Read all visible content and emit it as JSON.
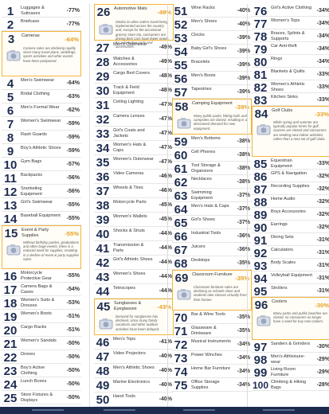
{
  "chart_data": {
    "type": "table",
    "rows": [
      {
        "rank": 1,
        "name": "Luggages & Suitcases",
        "value": "-77%"
      },
      {
        "rank": 2,
        "name": "Briefcase",
        "value": "-77%"
      },
      {
        "rank": 3,
        "name": "Cameras",
        "value": "-64%",
        "note": "Camera sales are declining rapidly since many travel plans, weddings, sports activities and other events have been postponed."
      },
      {
        "rank": 4,
        "name": "Men's Swimwear",
        "value": "-64%"
      },
      {
        "rank": 5,
        "name": "Bridal Clothing",
        "value": "-63%"
      },
      {
        "rank": 6,
        "name": "Men's Formal Wear",
        "value": "-62%"
      },
      {
        "rank": 7,
        "name": "Women's Swimwear",
        "value": "-59%"
      },
      {
        "rank": 8,
        "name": "Rash Guards",
        "value": "-59%"
      },
      {
        "rank": 9,
        "name": "Boy's Athletic Shoes",
        "value": "-59%"
      },
      {
        "rank": 10,
        "name": "Gym Bags",
        "value": "-57%"
      },
      {
        "rank": 11,
        "name": "Backpacks",
        "value": "-56%"
      },
      {
        "rank": 12,
        "name": "Snorkeling Equipment",
        "value": "-56%"
      },
      {
        "rank": 13,
        "name": "Girl's Swimwear",
        "value": "-55%"
      },
      {
        "rank": 14,
        "name": "Baseball Equipment",
        "value": "-55%"
      },
      {
        "rank": 15,
        "name": "Event & Party Supplies",
        "value": "-55%",
        "note": "Without birthday parties, graduations and other large events, there is a reduced need for supplies, resulting in a decline of event & party supplies sales."
      },
      {
        "rank": 16,
        "name": "Motorcycle Protective Gear",
        "value": "-55%"
      },
      {
        "rank": 17,
        "name": "Camera Bags & Cases",
        "value": "-54%"
      },
      {
        "rank": 18,
        "name": "Women's Suits & Dresses",
        "value": "-53%"
      },
      {
        "rank": 19,
        "name": "Women's Boots",
        "value": "-51%"
      },
      {
        "rank": 20,
        "name": "Cargo Racks",
        "value": "-51%"
      },
      {
        "rank": 21,
        "name": "Women's Sandals",
        "value": "-50%"
      },
      {
        "rank": 22,
        "name": "Drones",
        "value": "-50%"
      },
      {
        "rank": 23,
        "name": "Boy's Active Clothing",
        "value": "-50%"
      },
      {
        "rank": 24,
        "name": "Lunch Boxes",
        "value": "-50%"
      },
      {
        "rank": 25,
        "name": "Store Fixtures & Displays",
        "value": "-50%"
      },
      {
        "rank": 26,
        "name": "Automotive Mats",
        "value": "-49%",
        "note": "Similar to other orders travel being implemented across the country and, except for the occasional grocery store trip, consumers are driving their cars have fewer needs for automotive parts and accessories."
      },
      {
        "rank": 27,
        "name": "Men's Outerwear",
        "value": "-49%"
      },
      {
        "rank": 28,
        "name": "Watches & Accessories",
        "value": "-49%"
      },
      {
        "rank": 29,
        "name": "Cargo Bed Covers",
        "value": "-48%"
      },
      {
        "rank": 30,
        "name": "Track & Field Equipment",
        "value": "-48%"
      },
      {
        "rank": 31,
        "name": "Ceiling Lighting",
        "value": "-47%"
      },
      {
        "rank": 32,
        "name": "Camera Lenses",
        "value": "-47%"
      },
      {
        "rank": 33,
        "name": "Girl's Coats and Jackets",
        "value": "-47%"
      },
      {
        "rank": 34,
        "name": "Women's Hats & Caps",
        "value": "-47%"
      },
      {
        "rank": 35,
        "name": "Women's Outerwear",
        "value": "-47%"
      },
      {
        "rank": 36,
        "name": "Video Cameras",
        "value": "-46%"
      },
      {
        "rank": 37,
        "name": "Wheels & Tires",
        "value": "-46%"
      },
      {
        "rank": 38,
        "name": "Motorcycle Parts",
        "value": "-45%"
      },
      {
        "rank": 39,
        "name": "Women's Wallets",
        "value": "-45%"
      },
      {
        "rank": 40,
        "name": "Shocks & Struts",
        "value": "-44%"
      },
      {
        "rank": 41,
        "name": "Transmission & Parts",
        "value": "-44%"
      },
      {
        "rank": 42,
        "name": "Girl's Athletic Shoes",
        "value": "-44%"
      },
      {
        "rank": 43,
        "name": "Women's Shoes",
        "value": "-44%"
      },
      {
        "rank": 44,
        "name": "Telescopes",
        "value": "-44%"
      },
      {
        "rank": 45,
        "name": "Sunglasses & Eyeglasses",
        "value": "-43%",
        "note": "Demand for sunglasses has declined, since many family vacations and other outdoor activities have been delayed."
      },
      {
        "rank": 46,
        "name": "Men's Tops",
        "value": "-41%"
      },
      {
        "rank": 47,
        "name": "Video Projectors",
        "value": "-40%"
      },
      {
        "rank": 48,
        "name": "Men's Athletic Shoes",
        "value": "-40%"
      },
      {
        "rank": 49,
        "name": "Marine Electronics",
        "value": "-40%"
      },
      {
        "rank": 50,
        "name": "Hand Tools",
        "value": "-40%"
      },
      {
        "rank": 51,
        "name": "Wine Racks",
        "value": "-40%"
      },
      {
        "rank": 52,
        "name": "Men's Shoes",
        "value": "-40%"
      },
      {
        "rank": 53,
        "name": "Clocks",
        "value": "-39%"
      },
      {
        "rank": 54,
        "name": "Baby Girl's Shoes",
        "value": "-39%"
      },
      {
        "rank": 55,
        "name": "Bracelets",
        "value": "-39%"
      },
      {
        "rank": 56,
        "name": "Men's Boots",
        "value": "-39%"
      },
      {
        "rank": 57,
        "name": "Tapestries",
        "value": "-39%"
      },
      {
        "rank": 58,
        "name": "Camping Equipment",
        "value": "-39%",
        "note": "Many public parks, hiking trails and campsites are closed, resulting in a decreased demand for new equipment."
      },
      {
        "rank": 59,
        "name": "Men's Bottoms",
        "value": "-38%"
      },
      {
        "rank": 60,
        "name": "Cell Phones",
        "value": "-38%"
      },
      {
        "rank": 61,
        "name": "Tool Storage & Organizers",
        "value": "-38%"
      },
      {
        "rank": 62,
        "name": "Necklaces",
        "value": "-38%"
      },
      {
        "rank": 63,
        "name": "Swimming Equipment",
        "value": "-37%"
      },
      {
        "rank": 64,
        "name": "Men's Hats & Caps",
        "value": "-37%"
      },
      {
        "rank": 65,
        "name": "Girl's Shoes",
        "value": "-37%"
      },
      {
        "rank": 66,
        "name": "Industrial Tools",
        "value": "-36%"
      },
      {
        "rank": 67,
        "name": "Juicers",
        "value": "-36%"
      },
      {
        "rank": 68,
        "name": "Desktops",
        "value": "-35%"
      },
      {
        "rank": 69,
        "name": "Classroom Furniture",
        "value": "-35%",
        "note": "Classroom furniture sales are declining as schools close and students take classes virtually from their homes."
      },
      {
        "rank": 70,
        "name": "Bar & Wine Tools",
        "value": "-35%"
      },
      {
        "rank": 71,
        "name": "Glassware & Drinkware",
        "value": "-35%"
      },
      {
        "rank": 72,
        "name": "Musical Instruments",
        "value": "-34%"
      },
      {
        "rank": 73,
        "name": "Power Winches",
        "value": "-34%"
      },
      {
        "rank": 74,
        "name": "Home Bar Furniture",
        "value": "-34%"
      },
      {
        "rank": 75,
        "name": "Office Storage Supplies",
        "value": "-34%"
      },
      {
        "rank": 76,
        "name": "Girl's Active Clothing",
        "value": "-34%"
      },
      {
        "rank": 77,
        "name": "Women's Tops",
        "value": "-34%"
      },
      {
        "rank": 78,
        "name": "Braces, Splints & Supports",
        "value": "-34%"
      },
      {
        "rank": 79,
        "name": "Car Anti-theft",
        "value": "-34%"
      },
      {
        "rank": 80,
        "name": "Rings",
        "value": "-34%"
      },
      {
        "rank": 81,
        "name": "Blankets & Quilts",
        "value": "-33%"
      },
      {
        "rank": 82,
        "name": "Women's Athletic Shoes",
        "value": "-33%"
      },
      {
        "rank": 83,
        "name": "Kitchen Sinks",
        "value": "-33%"
      },
      {
        "rank": 84,
        "name": "Golf Clubs",
        "value": "-33%",
        "note": "While spring and summer are typically popular times for golf, courses are closed and consumers are seeking new indoor activities, rather than a new set of golf clubs."
      },
      {
        "rank": 85,
        "name": "Equestrian Equipment",
        "value": "-33%"
      },
      {
        "rank": 86,
        "name": "GPS & Navigation",
        "value": "-32%"
      },
      {
        "rank": 87,
        "name": "Recording Supplies",
        "value": "-32%"
      },
      {
        "rank": 88,
        "name": "Home Audio",
        "value": "-32%"
      },
      {
        "rank": 89,
        "name": "Boys Accessories",
        "value": "-32%"
      },
      {
        "rank": 90,
        "name": "Earrings",
        "value": "-32%"
      },
      {
        "rank": 91,
        "name": "Dining Sets",
        "value": "-31%"
      },
      {
        "rank": 92,
        "name": "Calculators",
        "value": "-31%"
      },
      {
        "rank": 93,
        "name": "Body Scales",
        "value": "-31%"
      },
      {
        "rank": 94,
        "name": "Volleyball Equipment",
        "value": "-31%"
      },
      {
        "rank": 95,
        "name": "Strollers",
        "value": "-31%"
      },
      {
        "rank": 96,
        "name": "Coolers",
        "value": "-30%",
        "note": "Many parks and public beaches are closed, so consumers no longer have a need for buy new coolers."
      },
      {
        "rank": 97,
        "name": "Sanders & Grinders",
        "value": "-30%"
      },
      {
        "rank": 98,
        "name": "Men's Athleisure-wear",
        "value": "-29%"
      },
      {
        "rank": 99,
        "name": "Living Room Furniture",
        "value": "-29%"
      },
      {
        "rank": 100,
        "name": "Climbing & Hiking Bags",
        "value": "-28%"
      }
    ]
  },
  "colors": {
    "rank_text": "#1d2b4f",
    "highlight_border": "#f2b53a",
    "highlight_value": "#e8a020",
    "footer_bar": "#1d2b4f"
  }
}
